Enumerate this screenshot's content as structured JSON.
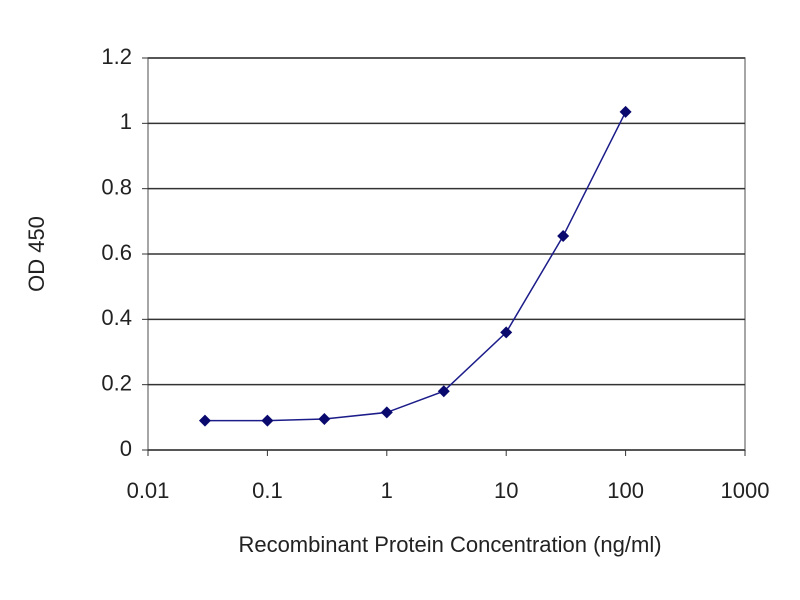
{
  "chart_data": {
    "type": "line",
    "x_label": "Recombinant Protein Concentration (ng/ml)",
    "y_label": "OD 450",
    "x": [
      0.03,
      0.1,
      0.3,
      1,
      3,
      10,
      30,
      100
    ],
    "series": [
      {
        "color": "#1c1c8a",
        "values": [
          0.09,
          0.09,
          0.095,
          0.115,
          0.18,
          0.36,
          0.655,
          1.035
        ]
      }
    ],
    "xscale": "log",
    "xlim": [
      0.01,
      1000
    ],
    "xticks": [
      0.01,
      0.1,
      1,
      10,
      100,
      1000
    ],
    "ylim": [
      0,
      1.2
    ],
    "yticks": [
      0,
      0.2,
      0.4,
      0.6,
      0.8,
      1,
      1.2
    ],
    "grid": true
  }
}
